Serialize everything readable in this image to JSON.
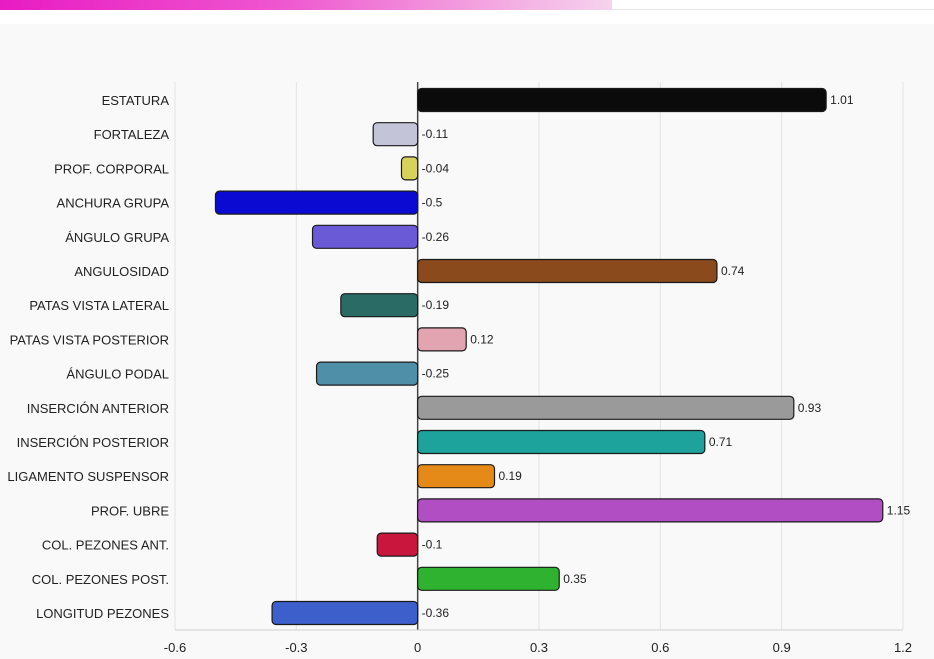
{
  "colors": {
    "stripe": "#e81cc3",
    "grid": "#e2e2e2",
    "axis": "#444444"
  },
  "chart_data": {
    "type": "bar",
    "orientation": "horizontal",
    "categories": [
      "ESTATURA",
      "FORTALEZA",
      "PROF. CORPORAL",
      "ANCHURA GRUPA",
      "ÁNGULO GRUPA",
      "ANGULOSIDAD",
      "PATAS VISTA LATERAL",
      "PATAS VISTA POSTERIOR",
      "ÁNGULO PODAL",
      "INSERCIÓN ANTERIOR",
      "INSERCIÓN POSTERIOR",
      "LIGAMENTO SUSPENSOR",
      "PROF. UBRE",
      "COL. PEZONES ANT.",
      "COL. PEZONES POST.",
      "LONGITUD PEZONES"
    ],
    "values": [
      1.01,
      -0.11,
      -0.04,
      -0.5,
      -0.26,
      0.74,
      -0.19,
      0.12,
      -0.25,
      0.93,
      0.71,
      0.19,
      1.15,
      -0.1,
      0.35,
      -0.36
    ],
    "value_labels": [
      "1.01",
      "-0.11",
      "-0.04",
      "-0.5",
      "-0.26",
      "0.74",
      "-0.19",
      "0.12",
      "-0.25",
      "0.93",
      "0.71",
      "0.19",
      "1.15",
      "-0.1",
      "0.35",
      "-0.36"
    ],
    "bar_colors": [
      "#0b0b0b",
      "#c4c4d8",
      "#d7d35a",
      "#0a0ad2",
      "#6a5ad6",
      "#8b4a1c",
      "#2b6b66",
      "#e2a4b0",
      "#4f8fa8",
      "#9a9a9a",
      "#1ea39c",
      "#e58a18",
      "#b14ec4",
      "#c8163c",
      "#2fb22f",
      "#3d5fcc"
    ],
    "x_ticks": [
      -0.6,
      -0.3,
      0,
      0.3,
      0.6,
      0.9,
      1.2
    ],
    "x_tick_labels": [
      "-0.6",
      "-0.3",
      "0",
      "0.3",
      "0.6",
      "0.9",
      "1.2"
    ],
    "xlim": [
      -0.6,
      1.2
    ],
    "grid": true,
    "legend": "none"
  }
}
